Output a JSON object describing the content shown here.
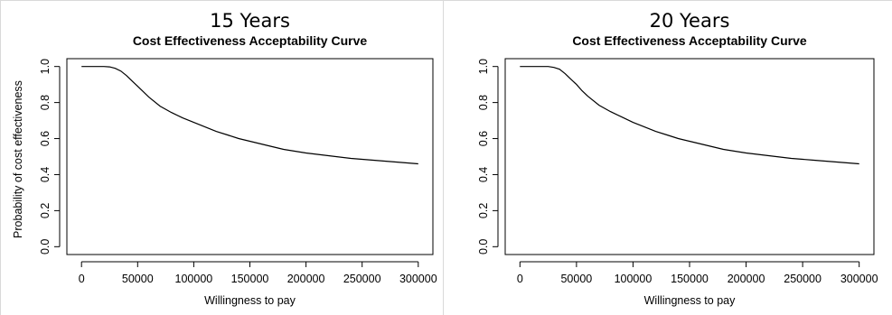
{
  "chart_data": [
    {
      "type": "line",
      "heading": "15 Years",
      "title": "Cost Effectiveness Acceptability Curve",
      "xlabel": "Willingness to pay",
      "ylabel": "Probability of cost effectiveness",
      "xlim": [
        0,
        300000
      ],
      "ylim": [
        0,
        1
      ],
      "xticks": [
        0,
        50000,
        100000,
        150000,
        200000,
        250000,
        300000
      ],
      "yticks": [
        0.0,
        0.2,
        0.4,
        0.6,
        0.8,
        1.0
      ],
      "ytick_labels": [
        "0.0",
        "0.2",
        "0.4",
        "0.6",
        "0.8",
        "1.0"
      ],
      "grid": false,
      "series": [
        {
          "x": [
            0,
            20000,
            25000,
            30000,
            35000,
            40000,
            45000,
            50000,
            55000,
            60000,
            70000,
            80000,
            90000,
            100000,
            110000,
            120000,
            130000,
            140000,
            150000,
            160000,
            170000,
            180000,
            190000,
            200000,
            220000,
            240000,
            260000,
            280000,
            300000
          ],
          "y": [
            1.0,
            1.0,
            0.998,
            0.99,
            0.975,
            0.95,
            0.92,
            0.89,
            0.86,
            0.83,
            0.78,
            0.745,
            0.715,
            0.69,
            0.665,
            0.64,
            0.62,
            0.6,
            0.585,
            0.57,
            0.555,
            0.54,
            0.53,
            0.52,
            0.505,
            0.49,
            0.48,
            0.47,
            0.46
          ]
        }
      ]
    },
    {
      "type": "line",
      "heading": "20 Years",
      "title": "Cost Effectiveness Acceptability Curve",
      "xlabel": "Willingness to pay",
      "ylabel": "",
      "xlim": [
        0,
        300000
      ],
      "ylim": [
        0,
        1
      ],
      "xticks": [
        0,
        50000,
        100000,
        150000,
        200000,
        250000,
        300000
      ],
      "yticks": [
        0.0,
        0.2,
        0.4,
        0.6,
        0.8,
        1.0
      ],
      "ytick_labels": [
        "0.0",
        "0.2",
        "0.4",
        "0.6",
        "0.8",
        "1.0"
      ],
      "grid": false,
      "series": [
        {
          "x": [
            0,
            20000,
            25000,
            30000,
            35000,
            40000,
            45000,
            50000,
            55000,
            60000,
            70000,
            80000,
            90000,
            100000,
            110000,
            120000,
            130000,
            140000,
            150000,
            160000,
            170000,
            180000,
            190000,
            200000,
            220000,
            240000,
            260000,
            280000,
            300000
          ],
          "y": [
            1.0,
            1.0,
            1.0,
            0.995,
            0.985,
            0.96,
            0.93,
            0.9,
            0.865,
            0.835,
            0.785,
            0.75,
            0.72,
            0.69,
            0.665,
            0.64,
            0.62,
            0.6,
            0.585,
            0.57,
            0.555,
            0.54,
            0.53,
            0.52,
            0.505,
            0.49,
            0.48,
            0.47,
            0.46
          ]
        }
      ]
    }
  ]
}
